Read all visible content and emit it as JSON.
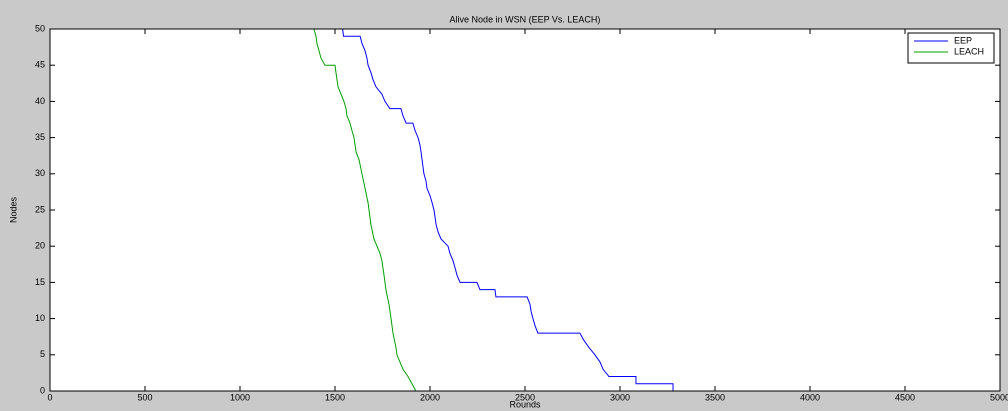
{
  "chart_data": {
    "type": "line",
    "title": "Alive Node in WSN (EEP Vs. LEACH)",
    "xlabel": "Rounds",
    "ylabel": "Nodes",
    "xlim": [
      0,
      5000
    ],
    "ylim": [
      0,
      50
    ],
    "xticks": [
      0,
      500,
      1000,
      1500,
      2000,
      2500,
      3000,
      3500,
      4000,
      4500,
      5000
    ],
    "yticks": [
      0,
      5,
      10,
      15,
      20,
      25,
      30,
      35,
      40,
      45,
      50
    ],
    "legend": "top-right",
    "series": [
      {
        "name": "EEP",
        "color": "#0000ff",
        "x": [
          0,
          1540,
          1545,
          1632,
          1642,
          1658,
          1668,
          1674,
          1689,
          1700,
          1716,
          1747,
          1763,
          1789,
          1847,
          1858,
          1874,
          1910,
          1921,
          1937,
          1947,
          1953,
          1963,
          1968,
          1979,
          1984,
          2000,
          2011,
          2021,
          2032,
          2042,
          2058,
          2095,
          2105,
          2121,
          2132,
          2142,
          2158,
          2247,
          2263,
          2342,
          2347,
          2511,
          2526,
          2532,
          2542,
          2553,
          2568,
          2789,
          2810,
          2837,
          2868,
          2895,
          2911,
          2942,
          3084,
          3084,
          3279,
          3279,
          5000
        ],
        "values": [
          50,
          50,
          49,
          49,
          48,
          47,
          46,
          45,
          44,
          43,
          42,
          41,
          40,
          39,
          39,
          38,
          37,
          37,
          36,
          35,
          34,
          33,
          31,
          30,
          29,
          28,
          27,
          26,
          25,
          23,
          22,
          21,
          20,
          19,
          18,
          17,
          16,
          15,
          15,
          14,
          14,
          13,
          13,
          12,
          11,
          10,
          9,
          8,
          8,
          7,
          6,
          5,
          4,
          3,
          2,
          2,
          1,
          1,
          0,
          0
        ]
      },
      {
        "name": "LEACH",
        "color": "#00a000",
        "x": [
          0,
          1389,
          1400,
          1405,
          1416,
          1426,
          1447,
          1500,
          1505,
          1516,
          1532,
          1547,
          1558,
          1563,
          1579,
          1589,
          1600,
          1611,
          1626,
          1642,
          1658,
          1674,
          1679,
          1689,
          1705,
          1721,
          1737,
          1747,
          1758,
          1768,
          1784,
          1795,
          1805,
          1821,
          1826,
          1842,
          1858,
          1884,
          1905,
          1926,
          5000
        ],
        "values": [
          50,
          50,
          49,
          48,
          47,
          46,
          45,
          45,
          44,
          42,
          41,
          40,
          39,
          38,
          37,
          36,
          35,
          33,
          32,
          30,
          28,
          26,
          25,
          23,
          21,
          20,
          19,
          18,
          16,
          14,
          12,
          10,
          8,
          6,
          5,
          4,
          3,
          2,
          1,
          0,
          0
        ]
      }
    ]
  }
}
